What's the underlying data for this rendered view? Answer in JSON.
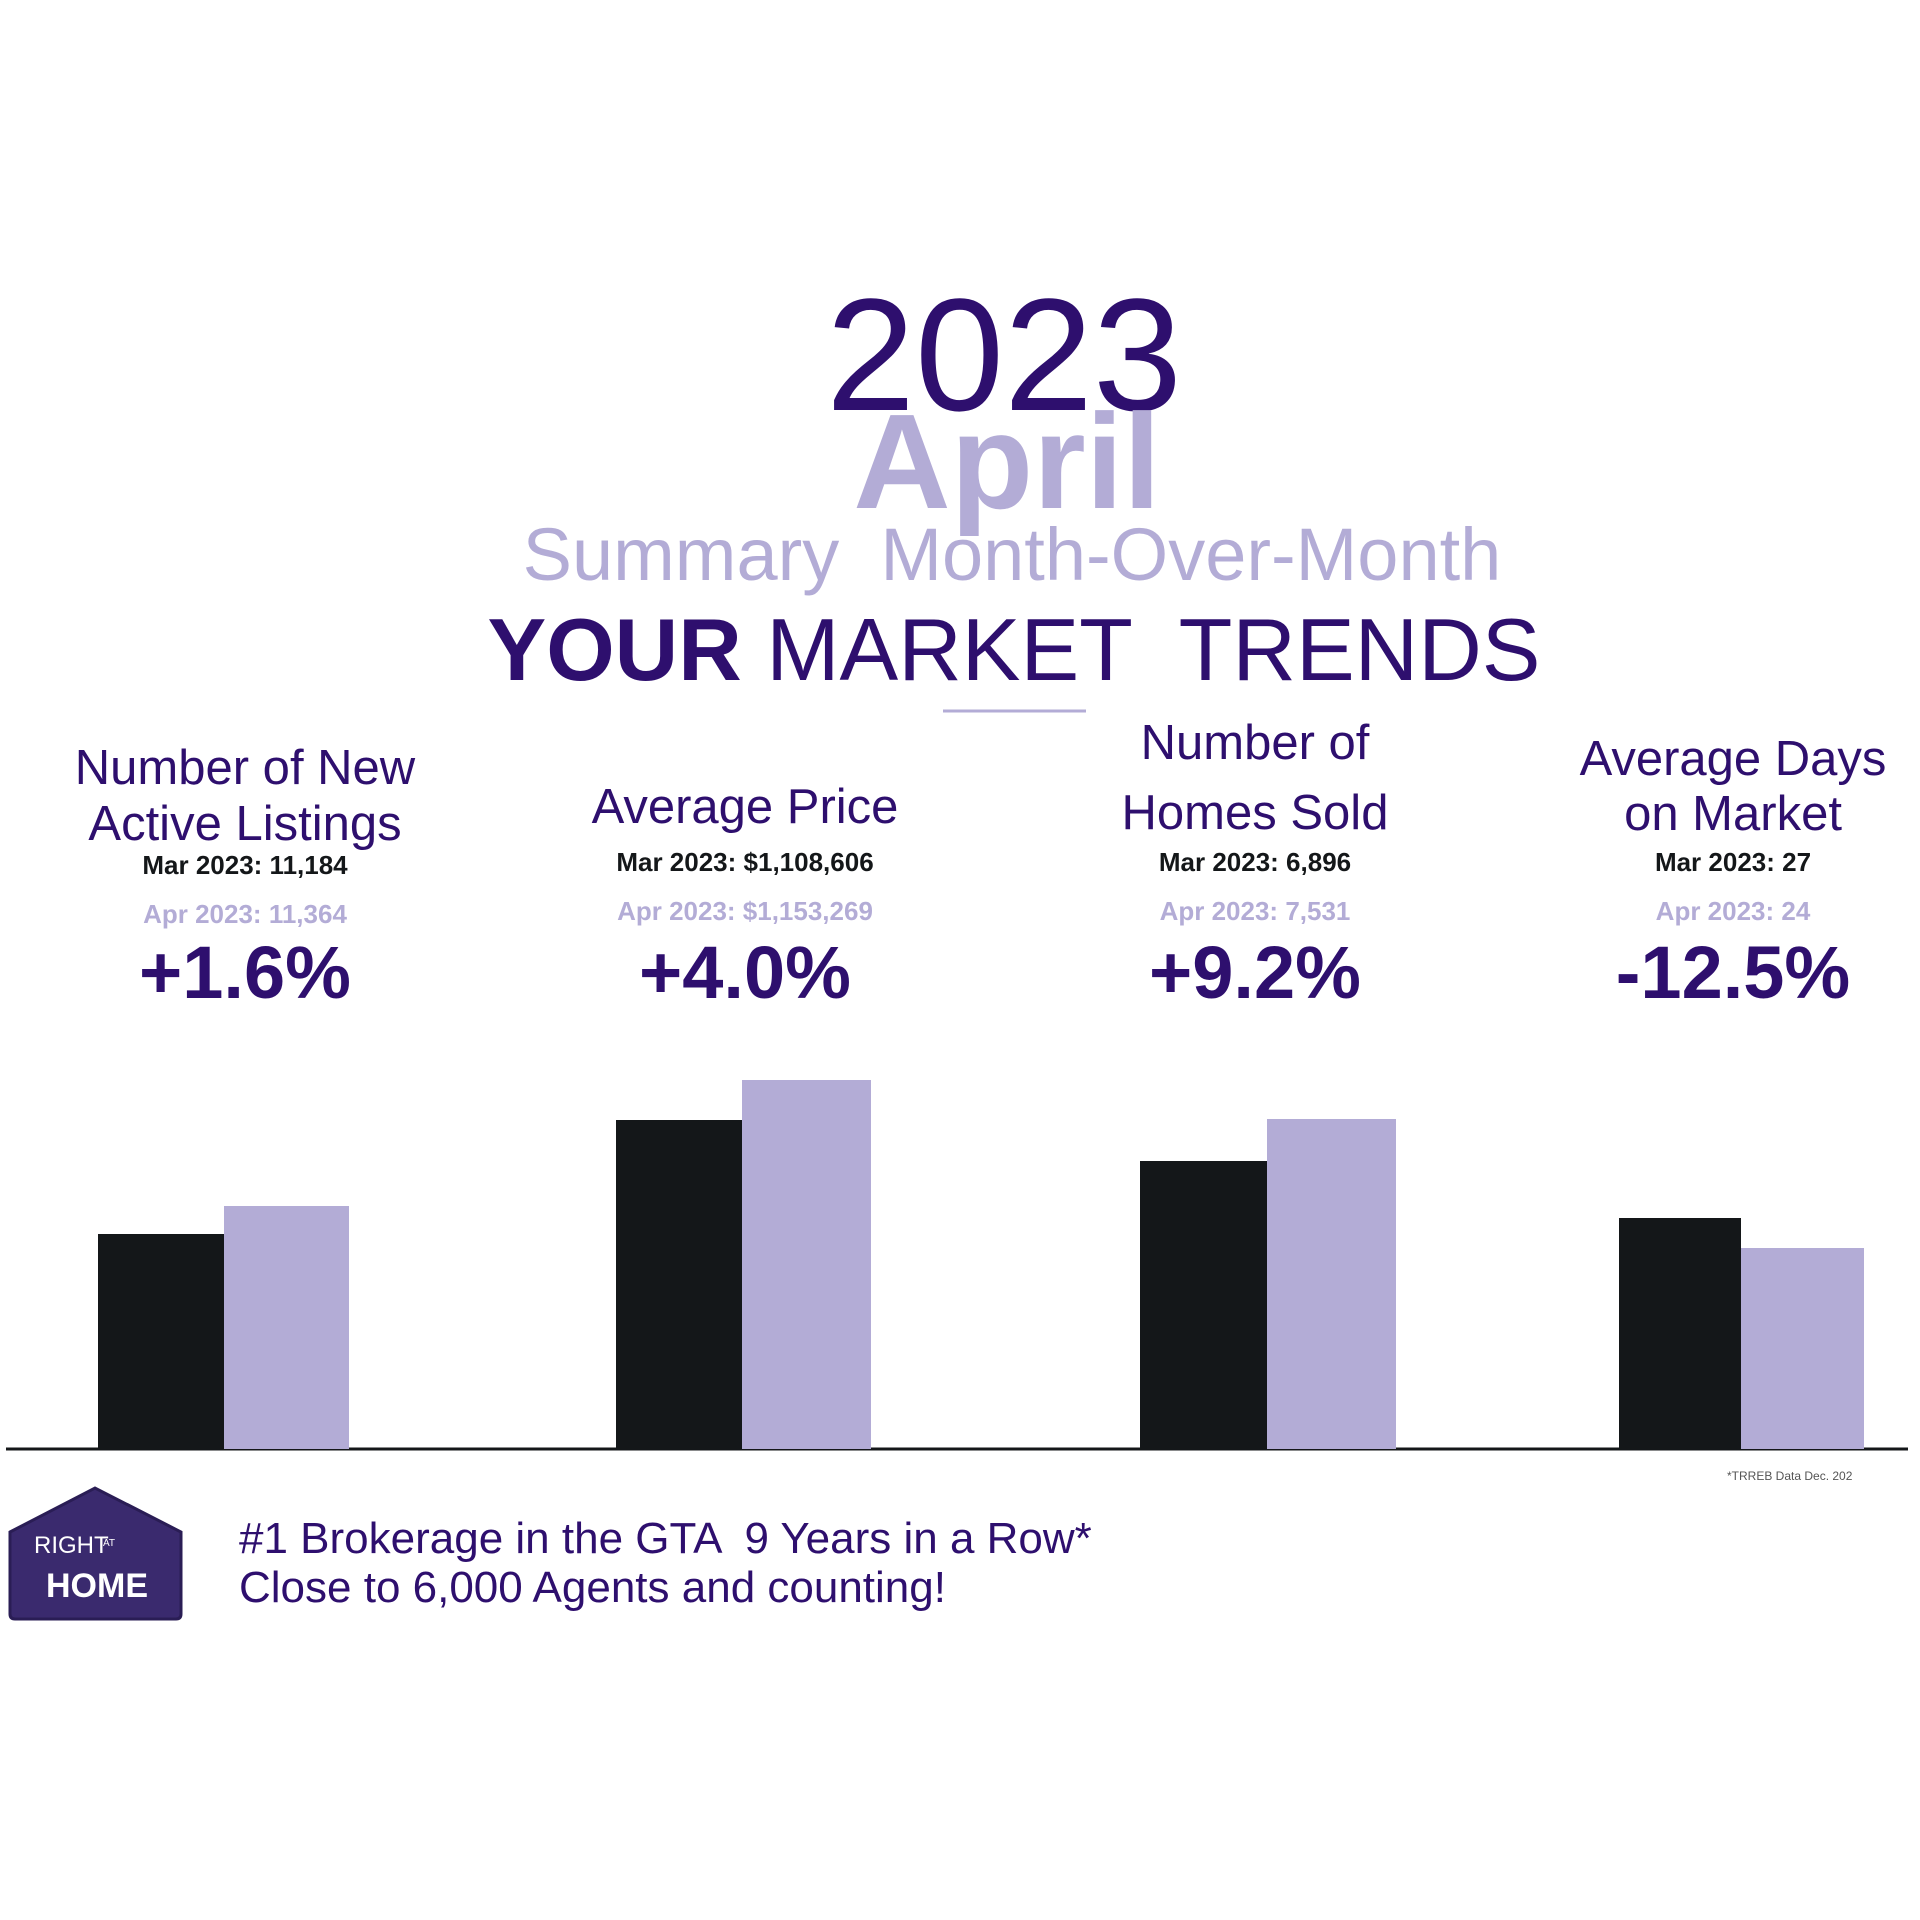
{
  "header": {
    "year": "2023",
    "month": "April",
    "subtitle": "Summary  Month-Over-Month",
    "title_bold": "YOUR",
    "title_rest": "MARKET  TRENDS"
  },
  "metrics": [
    {
      "heading": [
        "Number of New",
        "Active Listings"
      ],
      "previous": "Mar 2023:  11,184",
      "current": "Apr 2023:  11,364",
      "change": "+1.6%"
    },
    {
      "heading": [
        "Average Price"
      ],
      "previous": "Mar 2023:  $1,108,606",
      "current": "Apr 2023:  $1,153,269",
      "change": "+4.0%"
    },
    {
      "heading": [
        "Number of",
        "Homes Sold"
      ],
      "previous": "Mar 2023:  6,896",
      "current": "Apr 2023:  7,531",
      "change": "+9.2%"
    },
    {
      "heading": [
        "Average Days",
        "on Market"
      ],
      "previous": "Mar 2023:  27",
      "current": "Apr 2023:  24",
      "change": "-12.5%"
    }
  ],
  "footnote": "*TRREB Data Dec. 202",
  "logo": {
    "top": "RIGHT",
    "small": "AT",
    "bottom": "HOME"
  },
  "tagline": [
    "#1 Brokerage in the GTA  9 Years in a Row*",
    "Close to 6,000 Agents and counting!"
  ]
}
